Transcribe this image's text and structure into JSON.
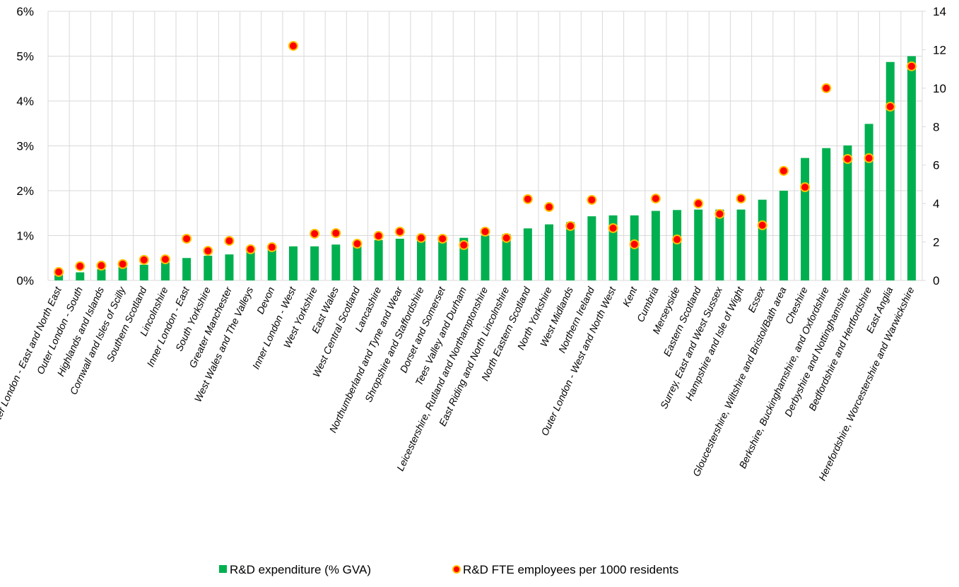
{
  "chart_data": {
    "type": "bar_scatter",
    "categories": [
      "Outer London - East and North East",
      "Outer London - South",
      "Highlands and Islands",
      "Cornwall and Isles of Scilly",
      "Southern Scotland",
      "Lincolnshire",
      "Inner London - East",
      "South Yorkshire",
      "Greater Manchester",
      "West Wales and The Valleys",
      "Devon",
      "Inner London - West",
      "West Yorkshire",
      "East Wales",
      "West Central Scotland",
      "Lancashire",
      "Northumberland and Tyne and Wear",
      "Shropshire and Staffordshire",
      "Dorset and Somerset",
      "Tees Valley and Durham",
      "Leicestershire, Rutland and Northamptonshire",
      "East Riding and North Lincolnshire",
      "North Eastern Scotland",
      "North Yorkshire",
      "West Midlands",
      "Northern Ireland",
      "Outer London - West and North West",
      "Kent",
      "Cumbria",
      "Merseyside",
      "Eastern Scotland",
      "Surrey, East and West Sussex",
      "Hampshire and Isle of Wight",
      "Essex",
      "Gloucestershire, Wiltshire and Bristol/Bath area",
      "Cheshire",
      "Berkshire, Buckinghamshire, and Oxfordshire",
      "Derbyshire and Nottinghamshire",
      "Bedfordshire and Hertfordshire",
      "East Anglia",
      "Herefordshire, Worcestershire and Warwickshire"
    ],
    "series": [
      {
        "name": "R&D expenditure (% GVA)",
        "color": "#00b050",
        "values": [
          0.12,
          0.18,
          0.25,
          0.3,
          0.35,
          0.4,
          0.5,
          0.55,
          0.58,
          0.65,
          0.7,
          0.76,
          0.76,
          0.8,
          0.82,
          0.9,
          0.93,
          0.94,
          0.94,
          0.95,
          1.0,
          1.03,
          1.16,
          1.25,
          1.3,
          1.43,
          1.45,
          1.45,
          1.55,
          1.57,
          1.58,
          1.58,
          1.58,
          1.8,
          2.0,
          2.73,
          2.95,
          3.01,
          3.49,
          4.87,
          5.0
        ]
      },
      {
        "name": "R&D FTE employees per 1000 residents",
        "color": "#ff0000",
        "edge_color": "#ffc000",
        "axis": "y2",
        "values": [
          0.44,
          0.74,
          0.77,
          0.85,
          1.07,
          1.1,
          2.17,
          1.54,
          2.06,
          1.62,
          1.73,
          12.2,
          2.43,
          2.46,
          1.91,
          2.32,
          2.54,
          2.21,
          2.17,
          1.84,
          2.54,
          2.21,
          4.23,
          3.82,
          2.83,
          4.19,
          2.72,
          1.88,
          4.26,
          2.13,
          4.0,
          3.46,
          4.26,
          2.87,
          5.7,
          4.85,
          10.0,
          6.32,
          6.36,
          9.04,
          11.14
        ]
      }
    ],
    "ylim": [
      0,
      6
    ],
    "yticks": [
      {
        "value": 0,
        "label": "0%"
      },
      {
        "value": 1,
        "label": "1%"
      },
      {
        "value": 2,
        "label": "2%"
      },
      {
        "value": 3,
        "label": "3%"
      },
      {
        "value": 4,
        "label": "4%"
      },
      {
        "value": 5,
        "label": "5%"
      },
      {
        "value": 6,
        "label": "6%"
      }
    ],
    "y2lim": [
      0,
      14
    ],
    "y2ticks": [
      0,
      2,
      4,
      6,
      8,
      10,
      12,
      14
    ],
    "grid": true,
    "legend": "bottom"
  }
}
